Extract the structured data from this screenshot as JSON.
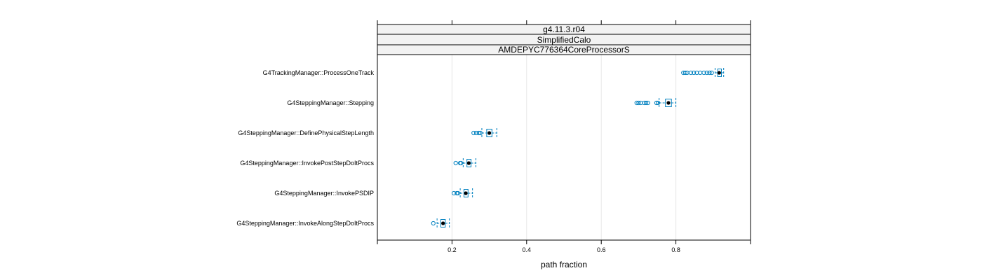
{
  "chart_data": {
    "type": "boxplot",
    "strips": [
      "g4.11.3.r04",
      "SimplifiedCalo",
      "AMDEPYC776364CoreProcessorS"
    ],
    "xlabel": "path fraction",
    "xticks": [
      0.2,
      0.4,
      0.6,
      0.8
    ],
    "xlim": [
      0.0,
      1.0
    ],
    "grid": "vertical",
    "colors": {
      "box": "#0080bf",
      "median_dot": "#000000",
      "strip_bg": "#f2f2f2",
      "grid": "#e6e6e6"
    },
    "categories": [
      "G4TrackingManager::ProcessOneTrack",
      "G4SteppingManager::Stepping",
      "G4SteppingManager::DefinePhysicalStepLength",
      "G4SteppingManager::InvokePostStepDoItProcs",
      "G4SteppingManager::InvokePSDIP",
      "G4SteppingManager::InvokeAlongStepDoItProcs"
    ],
    "boxes": [
      {
        "whisker_low": 0.905,
        "q1": 0.912,
        "median": 0.916,
        "q3": 0.922,
        "whisker_high": 0.928,
        "outliers": [
          0.82,
          0.825,
          0.83,
          0.84,
          0.848,
          0.856,
          0.865,
          0.875,
          0.883,
          0.89,
          0.896
        ]
      },
      {
        "whisker_low": 0.755,
        "q1": 0.772,
        "median": 0.78,
        "q3": 0.788,
        "whisker_high": 0.8,
        "outliers": [
          0.695,
          0.7,
          0.706,
          0.715,
          0.72,
          0.725,
          0.748,
          0.752
        ]
      },
      {
        "whisker_low": 0.28,
        "q1": 0.293,
        "median": 0.3,
        "q3": 0.307,
        "whisker_high": 0.32,
        "outliers": [
          0.258,
          0.265,
          0.272,
          0.276
        ]
      },
      {
        "whisker_low": 0.23,
        "q1": 0.24,
        "median": 0.245,
        "q3": 0.251,
        "whisker_high": 0.264,
        "outliers": [
          0.21,
          0.222,
          0.224
        ]
      },
      {
        "whisker_low": 0.222,
        "q1": 0.232,
        "median": 0.237,
        "q3": 0.243,
        "whisker_high": 0.255,
        "outliers": [
          0.205,
          0.213,
          0.216
        ]
      },
      {
        "whisker_low": 0.16,
        "q1": 0.17,
        "median": 0.176,
        "q3": 0.182,
        "whisker_high": 0.193,
        "outliers": [
          0.15
        ]
      }
    ]
  }
}
